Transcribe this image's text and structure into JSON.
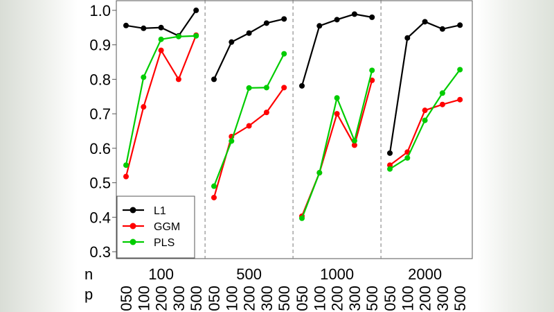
{
  "chart_data": {
    "type": "line",
    "ylim": [
      0.28,
      1.03
    ],
    "yticks": [
      "0.3",
      "0.4",
      "0.5",
      "0.6",
      "0.7",
      "0.8",
      "0.9",
      "1.0"
    ],
    "x_row_labels": {
      "n": "n",
      "p": "p"
    },
    "groups": [
      "100",
      "500",
      "1000",
      "2000"
    ],
    "p_labels": [
      "050",
      "100",
      "200",
      "300",
      "500"
    ],
    "grid": false,
    "legend_position": "bottom-left",
    "series": [
      {
        "name": "L1",
        "color": "#000000",
        "values": [
          [
            0.956,
            0.948,
            0.95,
            0.926,
            1.0
          ],
          [
            0.8,
            0.908,
            0.934,
            0.963,
            0.975
          ],
          [
            0.781,
            0.955,
            0.973,
            0.989,
            0.98
          ],
          [
            0.586,
            0.92,
            0.967,
            0.946,
            0.957
          ]
        ]
      },
      {
        "name": "GGM",
        "color": "#ff0000",
        "values": [
          [
            0.518,
            0.72,
            0.884,
            0.8,
            0.928
          ],
          [
            0.457,
            0.634,
            0.665,
            0.704,
            0.776
          ],
          [
            0.403,
            0.529,
            0.7,
            0.609,
            0.797
          ],
          [
            0.551,
            0.589,
            0.71,
            0.727,
            0.741
          ]
        ]
      },
      {
        "name": "PLS",
        "color": "#00cc00",
        "values": [
          [
            0.551,
            0.806,
            0.916,
            0.924,
            0.926
          ],
          [
            0.49,
            0.621,
            0.775,
            0.776,
            0.874
          ],
          [
            0.397,
            0.529,
            0.746,
            0.622,
            0.826
          ],
          [
            0.54,
            0.572,
            0.681,
            0.76,
            0.828
          ]
        ]
      }
    ]
  }
}
